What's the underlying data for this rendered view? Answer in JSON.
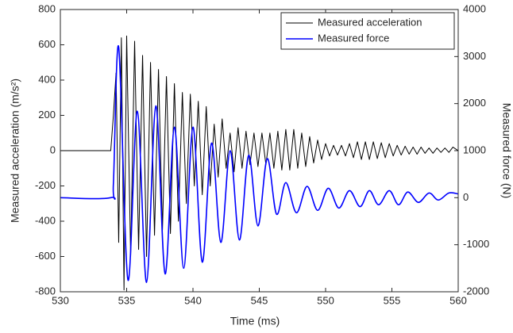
{
  "chart_data": {
    "type": "line",
    "xlabel": "Time (ms)",
    "ylabel": "Measured acceleration (m/s²)",
    "y2label": "Measured force (N)",
    "xlim": [
      530,
      560
    ],
    "xticks": [
      530,
      535,
      540,
      545,
      550,
      555,
      560
    ],
    "ylim": [
      -800,
      800
    ],
    "yticks": [
      -800,
      -600,
      -400,
      -200,
      0,
      200,
      400,
      600,
      800
    ],
    "y2lim": [
      -2000,
      4000
    ],
    "y2ticks": [
      -2000,
      -1000,
      0,
      1000,
      2000,
      3000,
      4000
    ],
    "legend": "upper right",
    "series": [
      {
        "name": "Measured acceleration",
        "color": "#000000",
        "axis": "y",
        "x": [
          530,
          533.8,
          534.0,
          534.2,
          534.4,
          534.6,
          534.8,
          535.0,
          535.3,
          535.6,
          535.9,
          536.2,
          536.5,
          536.8,
          537.1,
          537.4,
          537.7,
          538.0,
          538.3,
          538.6,
          538.9,
          539.2,
          539.5,
          539.8,
          540.1,
          540.4,
          540.7,
          541.0,
          541.3,
          541.6,
          541.9,
          542.2,
          542.5,
          542.8,
          543.1,
          543.4,
          543.7,
          544.0,
          544.3,
          544.6,
          544.9,
          545.2,
          545.5,
          545.8,
          546.1,
          546.4,
          546.7,
          547.0,
          547.3,
          547.6,
          547.9,
          548.2,
          548.5,
          548.8,
          549.1,
          549.4,
          549.7,
          550.0,
          550.3,
          550.6,
          550.9,
          551.2,
          551.5,
          551.8,
          552.1,
          552.4,
          552.7,
          553.0,
          553.3,
          553.6,
          553.9,
          554.2,
          554.5,
          554.8,
          555.1,
          555.4,
          555.7,
          556.0,
          556.3,
          556.6,
          556.9,
          557.2,
          557.5,
          557.8,
          558.1,
          558.4,
          558.7,
          559.0,
          559.3,
          559.6,
          560.0
        ],
        "values": [
          0,
          0,
          200,
          440,
          -520,
          640,
          -790,
          650,
          -600,
          620,
          -560,
          540,
          -600,
          500,
          -480,
          460,
          -450,
          420,
          -470,
          380,
          -400,
          330,
          -300,
          320,
          -200,
          280,
          -250,
          250,
          -200,
          150,
          -150,
          180,
          -100,
          100,
          -120,
          130,
          -100,
          110,
          -80,
          100,
          -90,
          100,
          -80,
          100,
          -100,
          110,
          -110,
          120,
          -110,
          120,
          -100,
          100,
          -90,
          80,
          -70,
          60,
          -50,
          40,
          -30,
          30,
          -25,
          30,
          -30,
          40,
          -40,
          50,
          -50,
          50,
          -50,
          50,
          -45,
          45,
          -40,
          40,
          -30,
          30,
          -25,
          25,
          -20,
          20,
          -20,
          20,
          -15,
          15,
          -15,
          15,
          -10,
          15,
          -10,
          20,
          0
        ]
      },
      {
        "name": "Measured force",
        "color": "#0000ff",
        "axis": "y2",
        "x": [
          530,
          533.8,
          534.0,
          534.4,
          535.1,
          535.8,
          536.5,
          537.2,
          537.9,
          538.6,
          539.3,
          540.0,
          540.7,
          541.4,
          542.1,
          542.8,
          543.5,
          544.2,
          544.9,
          545.6,
          546.3,
          547.0,
          547.8,
          548.6,
          549.4,
          550.2,
          551.0,
          551.8,
          552.6,
          553.3,
          554.0,
          554.8,
          555.5,
          556.2,
          557.0,
          557.8,
          558.5,
          559.3,
          560.0
        ],
        "values": [
          0,
          0,
          300,
          3200,
          -1750,
          1840,
          -1800,
          1950,
          -1620,
          1500,
          -1500,
          1500,
          -1370,
          1160,
          -950,
          1000,
          -900,
          900,
          -600,
          830,
          -350,
          320,
          -320,
          240,
          -270,
          200,
          -220,
          150,
          -190,
          150,
          -150,
          150,
          -150,
          120,
          -100,
          100,
          -50,
          100,
          80
        ]
      }
    ]
  }
}
